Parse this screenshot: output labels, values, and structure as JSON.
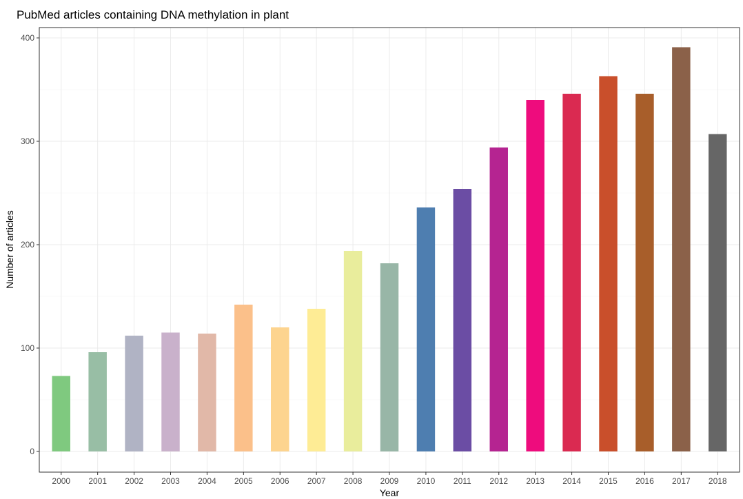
{
  "chart_data": {
    "type": "bar",
    "title": "PubMed articles containing DNA methylation in plant",
    "xlabel": "Year",
    "ylabel": "Number of articles",
    "categories": [
      "2000",
      "2001",
      "2002",
      "2003",
      "2004",
      "2005",
      "2006",
      "2007",
      "2008",
      "2009",
      "2010",
      "2011",
      "2012",
      "2013",
      "2014",
      "2015",
      "2016",
      "2017",
      "2018"
    ],
    "values": [
      73,
      96,
      112,
      115,
      114,
      142,
      120,
      138,
      194,
      182,
      236,
      254,
      294,
      340,
      346,
      363,
      346,
      391,
      307
    ],
    "colors": [
      "#7FC97F",
      "#98BEA5",
      "#B0B3C4",
      "#C9B1CB",
      "#E1B8A8",
      "#FBC08A",
      "#FDD48F",
      "#FEEC95",
      "#E9ED9C",
      "#98B6A7",
      "#4E7EB0",
      "#6B4DA4",
      "#B52491",
      "#EE0C7D",
      "#DA2A51",
      "#C94F2B",
      "#A85E2A",
      "#8B6149",
      "#666666"
    ],
    "ylim": [
      -20,
      410
    ],
    "yticks": [
      0,
      100,
      200,
      300,
      400
    ],
    "grid": true,
    "legend": "none"
  }
}
